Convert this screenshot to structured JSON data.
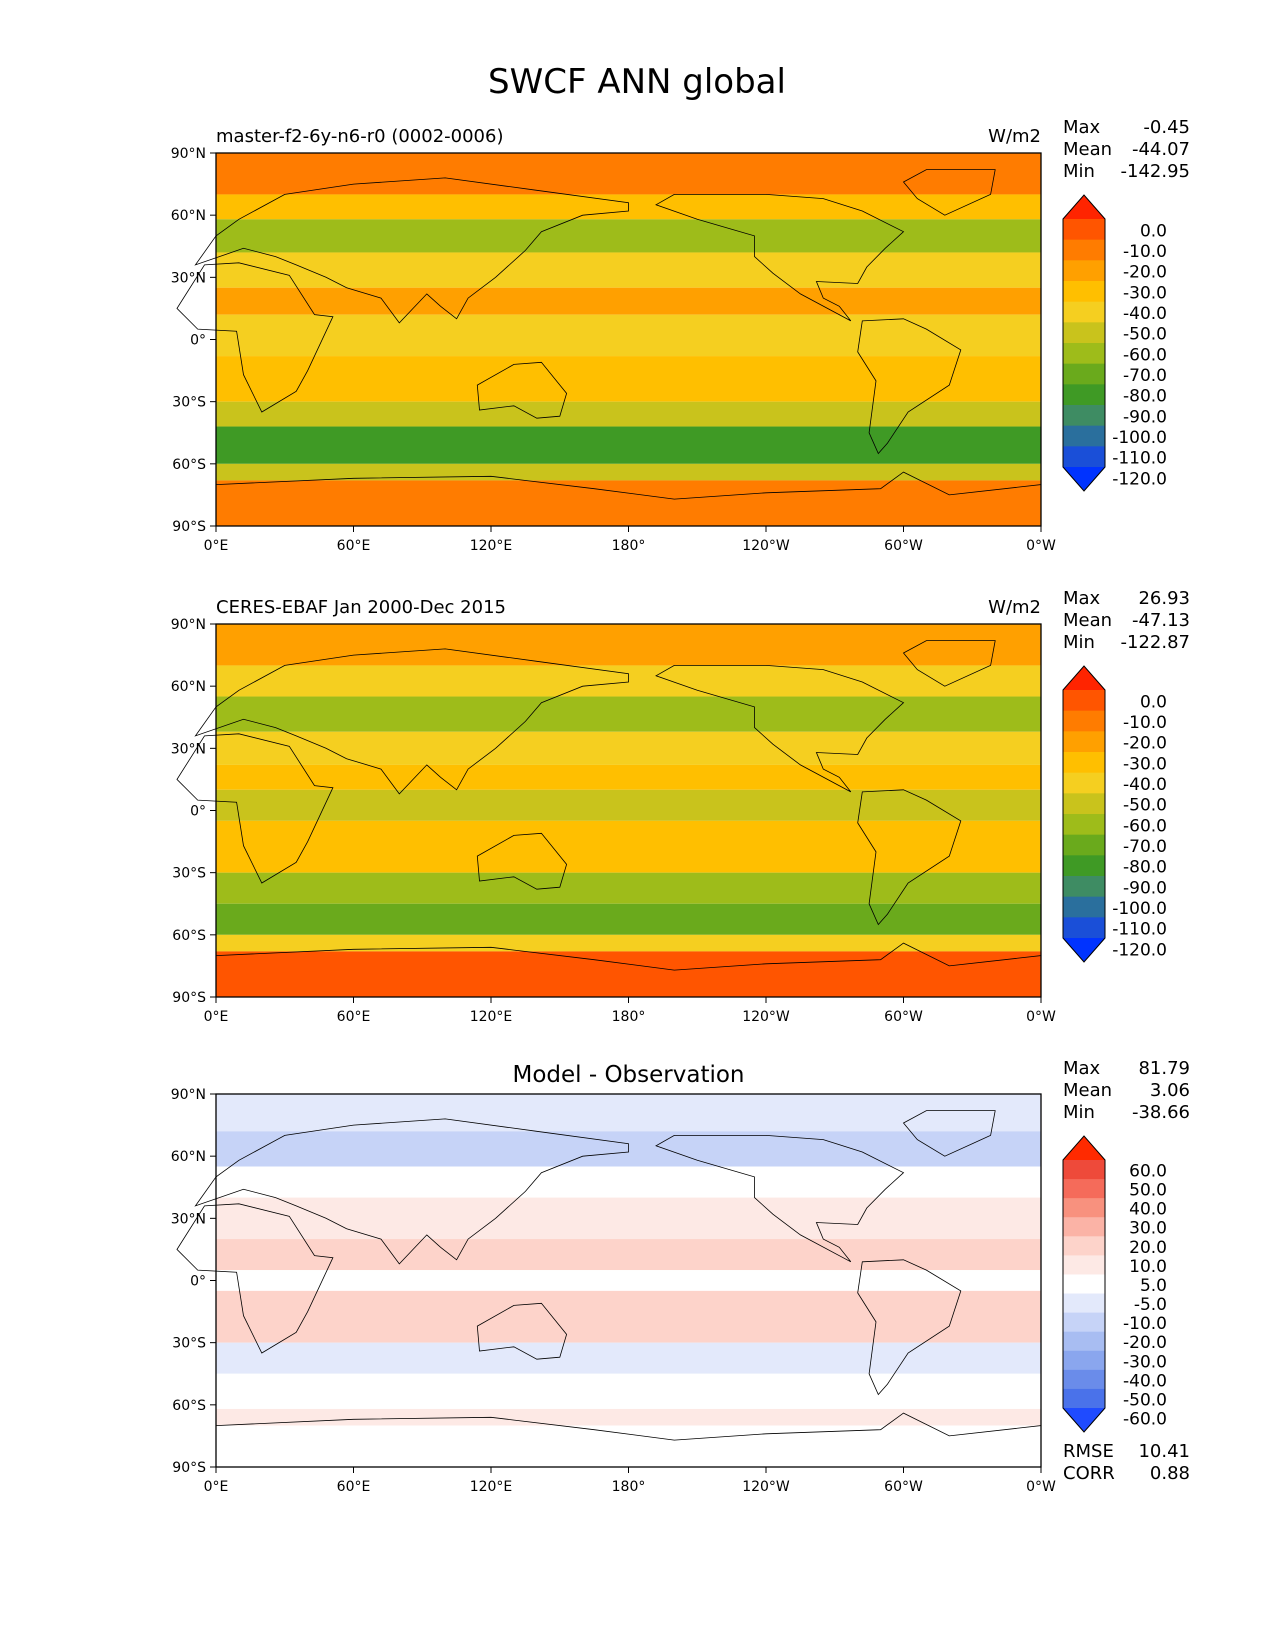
{
  "figure": {
    "title": "SWCF ANN global"
  },
  "x_ticks": [
    "0°E",
    "60°E",
    "120°E",
    "180°",
    "120°W",
    "60°W",
    "0°W"
  ],
  "y_ticks": [
    "90°N",
    "60°N",
    "30°N",
    "0°",
    "30°S",
    "60°S",
    "90°S"
  ],
  "stat_names": {
    "max": "Max",
    "mean": "Mean",
    "min": "Min",
    "rmse": "RMSE",
    "corr": "CORR"
  },
  "chart_data": [
    {
      "type": "heatmap",
      "name": "model",
      "title": "master-f2-6y-n6-r0 (0002-0006)",
      "units": "W/m2",
      "stats": {
        "max": "-0.45",
        "mean": "-44.07",
        "min": "-142.95"
      },
      "colorbar": {
        "labels": [
          "0.0",
          "-10.0",
          "-20.0",
          "-30.0",
          "-40.0",
          "-50.0",
          "-60.0",
          "-70.0",
          "-80.0",
          "-90.0",
          "-100.0",
          "-110.0",
          "-120.0"
        ],
        "colors": [
          "#ff2400",
          "#ff5500",
          "#ff7c00",
          "#ffa000",
          "#ffbf00",
          "#f5cf20",
          "#c9c31c",
          "#9ebc1a",
          "#6aaa1c",
          "#3f9a25",
          "#3e8c63",
          "#2a6f9d",
          "#1a4fd8",
          "#0033ff"
        ]
      },
      "x_range_lon": [
        0,
        360
      ],
      "y_range_lat": [
        -90,
        90
      ],
      "bands": [
        {
          "lat": [
            70,
            90
          ],
          "value": -20
        },
        {
          "lat": [
            58,
            70
          ],
          "value": -40
        },
        {
          "lat": [
            42,
            58
          ],
          "value": -70
        },
        {
          "lat": [
            25,
            42
          ],
          "value": -45
        },
        {
          "lat": [
            12,
            25
          ],
          "value": -25
        },
        {
          "lat": [
            -8,
            12
          ],
          "value": -45
        },
        {
          "lat": [
            -30,
            -8
          ],
          "value": -35
        },
        {
          "lat": [
            -42,
            -30
          ],
          "value": -55
        },
        {
          "lat": [
            -60,
            -42
          ],
          "value": -85
        },
        {
          "lat": [
            -68,
            -60
          ],
          "value": -55
        },
        {
          "lat": [
            -90,
            -68
          ],
          "value": -15
        }
      ]
    },
    {
      "type": "heatmap",
      "name": "observation",
      "title": "CERES-EBAF Jan 2000-Dec 2015",
      "units": "W/m2",
      "stats": {
        "max": "26.93",
        "mean": "-47.13",
        "min": "-122.87"
      },
      "colorbar": {
        "labels": [
          "0.0",
          "-10.0",
          "-20.0",
          "-30.0",
          "-40.0",
          "-50.0",
          "-60.0",
          "-70.0",
          "-80.0",
          "-90.0",
          "-100.0",
          "-110.0",
          "-120.0"
        ],
        "colors": [
          "#ff2400",
          "#ff5500",
          "#ff7c00",
          "#ffa000",
          "#ffbf00",
          "#f5cf20",
          "#c9c31c",
          "#9ebc1a",
          "#6aaa1c",
          "#3f9a25",
          "#3e8c63",
          "#2a6f9d",
          "#1a4fd8",
          "#0033ff"
        ]
      },
      "x_range_lon": [
        0,
        360
      ],
      "y_range_lat": [
        -90,
        90
      ],
      "bands": [
        {
          "lat": [
            70,
            90
          ],
          "value": -25
        },
        {
          "lat": [
            55,
            70
          ],
          "value": -45
        },
        {
          "lat": [
            38,
            55
          ],
          "value": -65
        },
        {
          "lat": [
            22,
            38
          ],
          "value": -45
        },
        {
          "lat": [
            10,
            22
          ],
          "value": -40
        },
        {
          "lat": [
            -5,
            10
          ],
          "value": -55
        },
        {
          "lat": [
            -30,
            -5
          ],
          "value": -40
        },
        {
          "lat": [
            -45,
            -30
          ],
          "value": -65
        },
        {
          "lat": [
            -60,
            -45
          ],
          "value": -75
        },
        {
          "lat": [
            -68,
            -60
          ],
          "value": -45
        },
        {
          "lat": [
            -90,
            -68
          ],
          "value": -10
        }
      ]
    },
    {
      "type": "heatmap",
      "name": "difference",
      "title": "Model - Observation",
      "units": "",
      "stats": {
        "max": "81.79",
        "mean": "3.06",
        "min": "-38.66",
        "rmse": "10.41",
        "corr": "0.88"
      },
      "colorbar": {
        "labels": [
          "60.0",
          "50.0",
          "40.0",
          "30.0",
          "20.0",
          "10.0",
          "5.0",
          "-5.0",
          "-10.0",
          "-20.0",
          "-30.0",
          "-40.0",
          "-50.0",
          "-60.0"
        ],
        "colors": [
          "#ff2a00",
          "#ee4a3a",
          "#f56b5a",
          "#f8917e",
          "#fbb3a6",
          "#fdd3ca",
          "#fde9e5",
          "#ffffff",
          "#e3e9fb",
          "#c6d3f7",
          "#a8bdf2",
          "#8aa6ee",
          "#6a8cea",
          "#4a72ea",
          "#1f4bff"
        ]
      },
      "x_range_lon": [
        0,
        360
      ],
      "y_range_lat": [
        -90,
        90
      ],
      "bands": [
        {
          "lat": [
            72,
            90
          ],
          "value": -8
        },
        {
          "lat": [
            55,
            72
          ],
          "value": -12
        },
        {
          "lat": [
            40,
            55
          ],
          "value": 2
        },
        {
          "lat": [
            20,
            40
          ],
          "value": 8
        },
        {
          "lat": [
            5,
            20
          ],
          "value": 12
        },
        {
          "lat": [
            -5,
            5
          ],
          "value": 3
        },
        {
          "lat": [
            -30,
            -5
          ],
          "value": 10
        },
        {
          "lat": [
            -45,
            -30
          ],
          "value": -6
        },
        {
          "lat": [
            -62,
            -45
          ],
          "value": 2
        },
        {
          "lat": [
            -70,
            -62
          ],
          "value": 6
        },
        {
          "lat": [
            -90,
            -70
          ],
          "value": 0
        }
      ]
    }
  ]
}
